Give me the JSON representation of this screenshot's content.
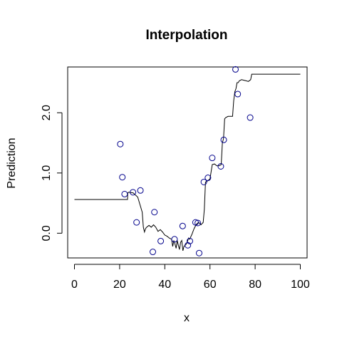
{
  "chart_data": {
    "type": "scatter",
    "title": "Interpolation",
    "xlabel": "x",
    "ylabel": "Prediction",
    "xlim": [
      -3,
      103
    ],
    "ylim": [
      -0.41,
      2.76
    ],
    "x_ticks": [
      0,
      20,
      40,
      60,
      80,
      100
    ],
    "x_tick_labels": [
      "0",
      "20",
      "40",
      "60",
      "80",
      "100"
    ],
    "y_ticks": [
      0.0,
      1.0,
      2.0
    ],
    "y_tick_labels": [
      "0.0",
      "1.0",
      "2.0"
    ],
    "grid": false,
    "legend": "none",
    "colors": {
      "points": "#00008b",
      "line": "#000000"
    },
    "points": {
      "x": [
        20.3,
        21.2,
        22.2,
        25.9,
        27.5,
        29.2,
        34.7,
        35.4,
        38.2,
        44.3,
        47.9,
        50.2,
        51.1,
        53.6,
        54.6,
        55.2,
        57.3,
        59.1,
        61.0,
        64.8,
        66.1,
        71.3,
        72.3,
        77.8
      ],
      "y": [
        1.48,
        0.93,
        0.65,
        0.68,
        0.18,
        0.71,
        -0.31,
        0.35,
        -0.13,
        -0.1,
        0.12,
        -0.2,
        -0.13,
        0.18,
        0.17,
        -0.33,
        0.85,
        0.92,
        1.25,
        1.11,
        1.55,
        2.72,
        2.31,
        1.92
      ]
    },
    "line": {
      "x": [
        0,
        23.5,
        23.6,
        24,
        26,
        28,
        30,
        30.5,
        31,
        31.5,
        32,
        33,
        34,
        35,
        36,
        37,
        38,
        39,
        40,
        41,
        42,
        43,
        43.5,
        44,
        44.5,
        45,
        45.5,
        46,
        46.5,
        47,
        47.5,
        48,
        48.5,
        49,
        49.5,
        50,
        50.5,
        51,
        52,
        53,
        54,
        55,
        56,
        57,
        57.5,
        58,
        59,
        60,
        61,
        62,
        63,
        64,
        65,
        65.5,
        66,
        66.5,
        67,
        68,
        69,
        70,
        70.5,
        71,
        71.5,
        72,
        72.5,
        73,
        74,
        75,
        76,
        77,
        78,
        78.5,
        79,
        100
      ],
      "y": [
        0.56,
        0.56,
        0.67,
        0.68,
        0.67,
        0.6,
        0.35,
        0.1,
        0.02,
        0.08,
        0.1,
        0.13,
        0.1,
        0.14,
        0.1,
        0.03,
        0.06,
        0.02,
        -0.03,
        -0.05,
        -0.08,
        -0.1,
        -0.22,
        -0.12,
        -0.18,
        -0.25,
        -0.12,
        -0.2,
        -0.27,
        -0.15,
        -0.12,
        -0.29,
        -0.22,
        -0.2,
        -0.18,
        -0.14,
        -0.08,
        -0.1,
        -0.02,
        0.08,
        0.15,
        0.18,
        0.14,
        0.18,
        0.4,
        0.85,
        0.87,
        0.9,
        1.14,
        1.15,
        1.12,
        1.12,
        1.14,
        1.5,
        1.57,
        1.9,
        1.92,
        1.94,
        1.94,
        1.94,
        2.2,
        2.35,
        2.4,
        2.5,
        2.5,
        2.53,
        2.55,
        2.54,
        2.53,
        2.52,
        2.55,
        2.64,
        2.64,
        2.64
      ]
    }
  }
}
